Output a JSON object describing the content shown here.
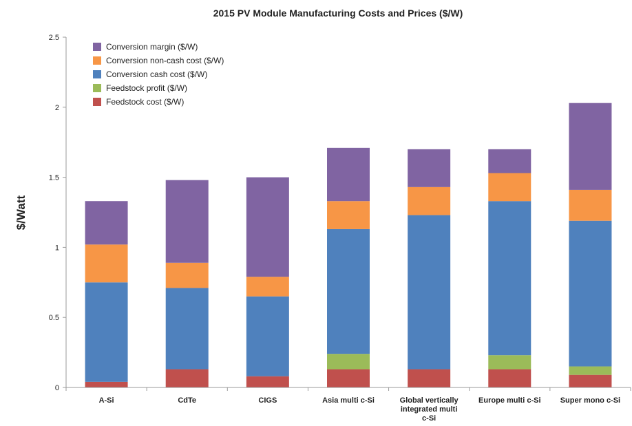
{
  "chart_data": {
    "type": "bar",
    "stacked": true,
    "title": "2015 PV Module Manufacturing Costs and Prices ($/W)",
    "ylabel": "$/Watt",
    "xlabel": "",
    "ylim": [
      0,
      2.5
    ],
    "yticks": [
      "0",
      "0.5",
      "1",
      "1.5",
      "2",
      "2.5"
    ],
    "legend_position": "top-left",
    "grid": false,
    "categories": [
      [
        "A-Si"
      ],
      [
        "CdTe"
      ],
      [
        "CIGS"
      ],
      [
        "Asia multi c-Si"
      ],
      [
        "Global vertically",
        "integrated multi",
        "c-Si"
      ],
      [
        "Europe multi c-Si"
      ],
      [
        "Super mono c-Si"
      ]
    ],
    "series": [
      {
        "name": "Feedstock cost ($/W)",
        "color": "#c0504d",
        "values": [
          0.04,
          0.13,
          0.08,
          0.13,
          0.13,
          0.13,
          0.09
        ]
      },
      {
        "name": "Feedstock profit ($/W)",
        "color": "#9bbb59",
        "values": [
          0.0,
          0.0,
          0.0,
          0.11,
          0.0,
          0.1,
          0.06
        ]
      },
      {
        "name": "Conversion cash cost ($/W)",
        "color": "#4f81bd",
        "values": [
          0.71,
          0.58,
          0.57,
          0.89,
          1.1,
          1.1,
          1.04
        ]
      },
      {
        "name": "Conversion non-cash cost ($/W)",
        "color": "#f79646",
        "values": [
          0.27,
          0.18,
          0.14,
          0.2,
          0.2,
          0.2,
          0.22
        ]
      },
      {
        "name": "Conversion margin ($/W)",
        "color": "#8064a2",
        "values": [
          0.31,
          0.59,
          0.71,
          0.38,
          0.27,
          0.17,
          0.62
        ]
      }
    ]
  }
}
